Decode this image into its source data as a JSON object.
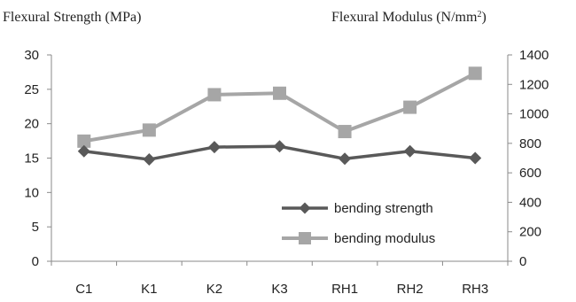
{
  "chart_data": {
    "type": "line",
    "categories": [
      "C1",
      "K1",
      "K2",
      "K3",
      "RH1",
      "RH2",
      "RH3"
    ],
    "y_left": {
      "label": "Flexural Strength (MPa)",
      "range": [
        0,
        30
      ],
      "ticks": [
        0,
        5,
        10,
        15,
        20,
        25,
        30
      ]
    },
    "y_right": {
      "label": "Flexural Modulus (N/mm2)",
      "range": [
        0,
        1400
      ],
      "ticks": [
        0,
        200,
        400,
        600,
        800,
        1000,
        1200,
        1400
      ]
    },
    "grid": false,
    "legend_position": "bottom-right",
    "series": [
      {
        "name": "bending strength",
        "axis": "left",
        "marker": "diamond",
        "color": "#595959",
        "values": [
          16.0,
          14.8,
          16.6,
          16.7,
          14.9,
          16.0,
          15.0
        ]
      },
      {
        "name": "bending modulus",
        "axis": "right",
        "marker": "square",
        "color": "#a6a6a6",
        "values": [
          815,
          890,
          1130,
          1140,
          880,
          1045,
          1275
        ]
      }
    ]
  }
}
